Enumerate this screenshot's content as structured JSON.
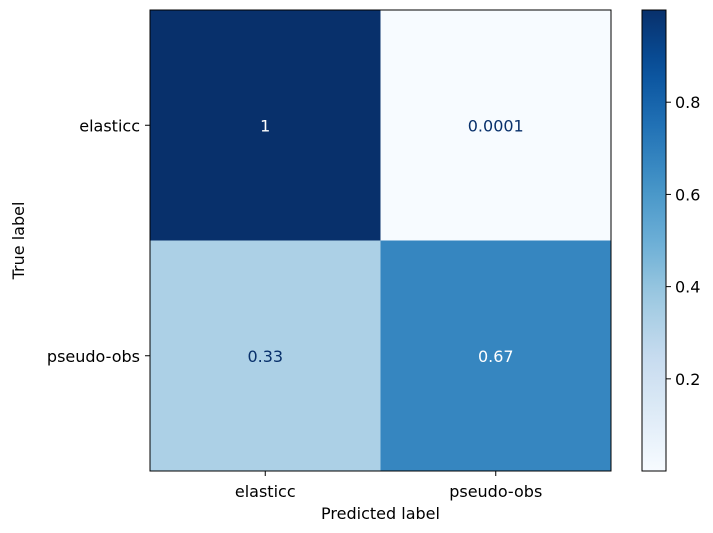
{
  "chart_data": {
    "type": "heatmap",
    "title": "",
    "xlabel": "Predicted label",
    "ylabel": "True label",
    "x_categories": [
      "elasticc",
      "pseudo-obs"
    ],
    "y_categories": [
      "elasticc",
      "pseudo-obs"
    ],
    "values": [
      [
        1,
        0.0001
      ],
      [
        0.33,
        0.67
      ]
    ],
    "cell_labels": [
      [
        "1",
        "0.0001"
      ],
      [
        "0.33",
        "0.67"
      ]
    ],
    "colormap": "Blues",
    "colorbar": {
      "vmin": 0.0001,
      "vmax": 1,
      "ticks": [
        0.2,
        0.4,
        0.6,
        0.8
      ],
      "tick_labels": [
        "0.2",
        "0.4",
        "0.6",
        "0.8"
      ]
    },
    "text_colors": {
      "dark_cell": "#ffffff",
      "light_cell": "#08306b"
    }
  }
}
